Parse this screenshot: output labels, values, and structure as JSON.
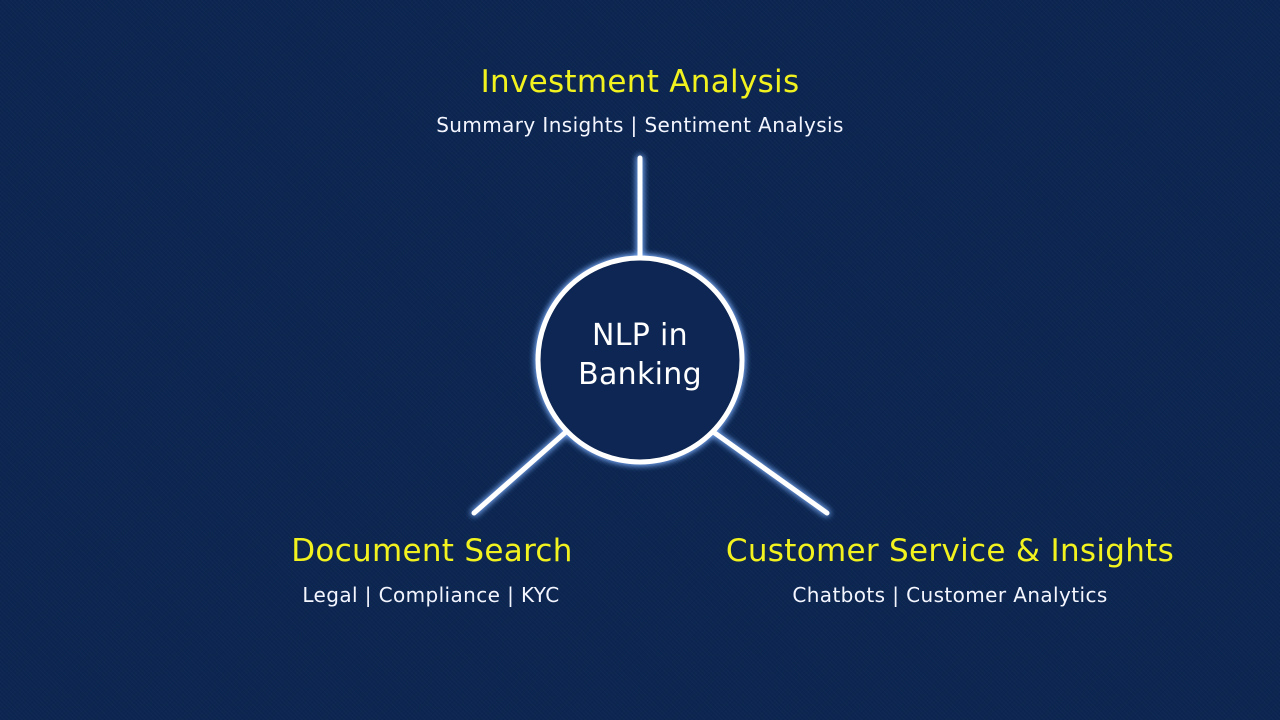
{
  "center": {
    "line1": "NLP in",
    "line2": "Banking"
  },
  "branches": {
    "top": {
      "title": "Investment Analysis",
      "subtitle": "Summary Insights | Sentiment Analysis"
    },
    "left": {
      "title": "Document Search",
      "subtitle": "Legal | Compliance | KYC"
    },
    "right": {
      "title": "Customer Service & Insights",
      "subtitle": "Chatbots | Customer Analytics"
    }
  },
  "colors": {
    "background": "#0c2652",
    "title": "#f2f21e",
    "subtitle": "#f4f6ff",
    "connector": "#ffffff",
    "glow": "#7fb2ff"
  }
}
